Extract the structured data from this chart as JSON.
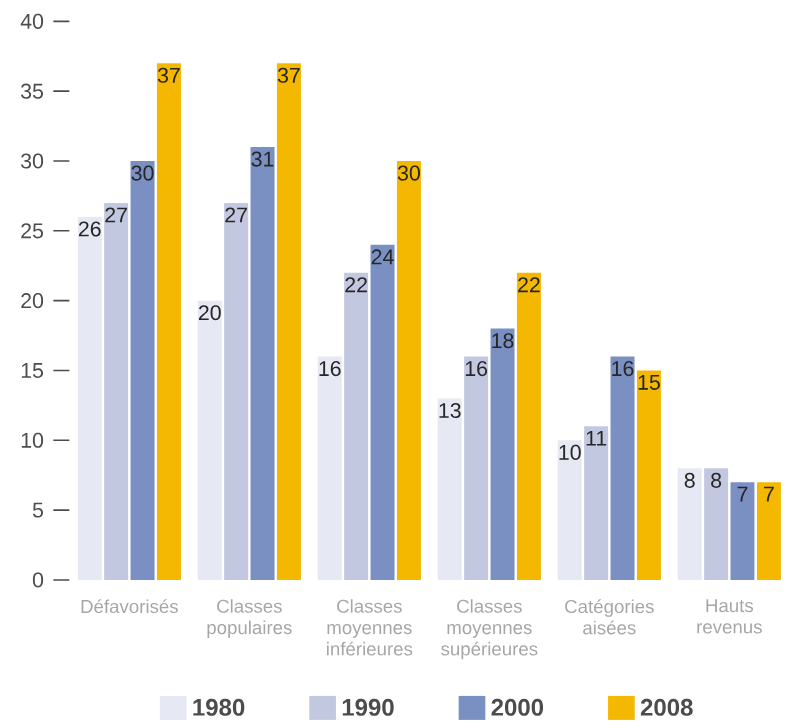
{
  "chart_data": {
    "type": "bar",
    "categories": [
      "Défavorisés",
      "Classes populaires",
      "Classes moyennes inférieures",
      "Classes moyennes supérieures",
      "Catégories aisées",
      "Hauts revenus"
    ],
    "series": [
      {
        "name": "1980",
        "color": "#e6e8f3",
        "values": [
          26,
          20,
          16,
          13,
          10,
          8
        ]
      },
      {
        "name": "1990",
        "color": "#c2c8e0",
        "values": [
          27,
          27,
          22,
          16,
          11,
          8
        ]
      },
      {
        "name": "2000",
        "color": "#7a8fc2",
        "values": [
          30,
          31,
          24,
          18,
          16,
          7
        ]
      },
      {
        "name": "2008",
        "color": "#f5b800",
        "values": [
          37,
          37,
          30,
          22,
          15,
          7
        ]
      }
    ],
    "ylim": [
      0,
      40
    ],
    "yticks": [
      0,
      5,
      10,
      15,
      20,
      25,
      30,
      35,
      40
    ],
    "data_labels": true,
    "legend": "bottom",
    "grid": false
  }
}
